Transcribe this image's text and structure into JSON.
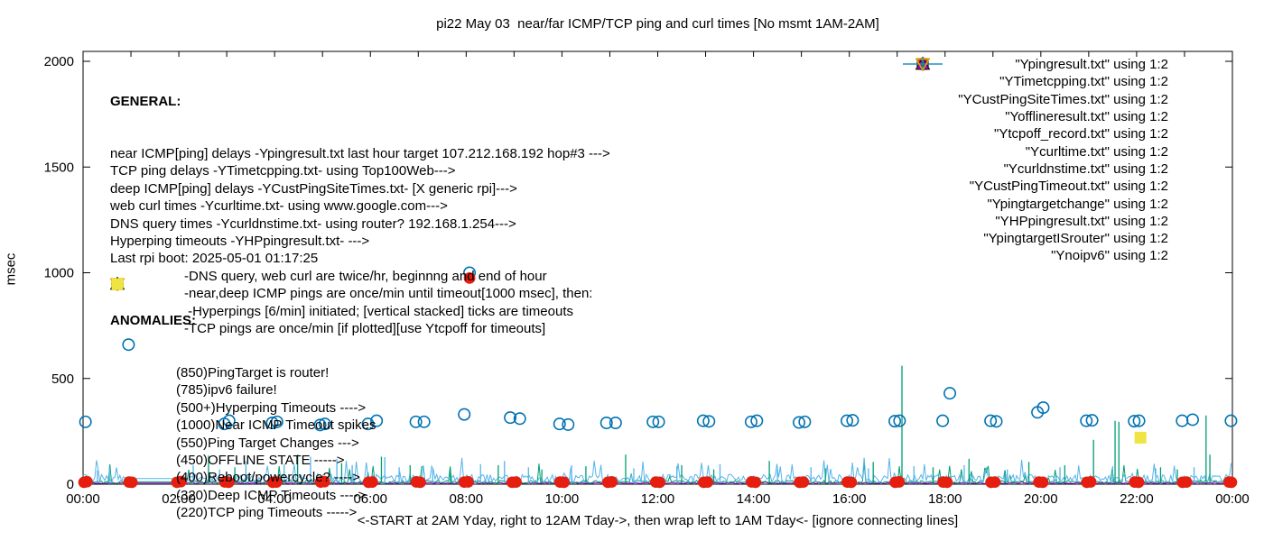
{
  "title": "pi22 May 03  near/far ICMP/TCP ping and curl times [No msmt 1AM-2AM]",
  "axes": {
    "ylabel": "msec",
    "xlabel": "<-START at 2AM Yday, right to 12AM Tday->, then wrap left to 1AM Tday<- [ignore connecting lines]",
    "y_ticks": [
      0,
      500,
      1000,
      1500,
      2000
    ],
    "x_tick_labels": [
      "00:00",
      "02:00",
      "04:00",
      "06:00",
      "08:00",
      "10:00",
      "12:00",
      "14:00",
      "16:00",
      "18:00",
      "20:00",
      "22:00",
      "00:00"
    ],
    "x_tick_hours": [
      0,
      2,
      4,
      6,
      8,
      10,
      12,
      14,
      16,
      18,
      20,
      22,
      24
    ],
    "minor_x_tick_every_hours": 1,
    "y_range": [
      0,
      2000
    ],
    "x_range_hours": [
      0,
      24
    ]
  },
  "legend": [
    {
      "label": "\"Ypingresult.txt\" using 1:2",
      "marker": "line",
      "color": "#9400d3"
    },
    {
      "label": "\"YTimetcpping.txt\" using 1:2",
      "marker": "line",
      "color": "#009e73"
    },
    {
      "label": "\"YCustPingSiteTimes.txt\" using 1:2",
      "marker": "line",
      "color": "#56b4e9"
    },
    {
      "label": "\"Yofflineresult.txt\" using 1:2",
      "marker": "square-open",
      "color": "#e69f00"
    },
    {
      "label": "\"Ytcpoff_record.txt\" using 1:2",
      "marker": "square-filled",
      "color": "#f0e442"
    },
    {
      "label": "\"Ycurltime.txt\" using 1:2",
      "marker": "circle-open",
      "color": "#0072b2"
    },
    {
      "label": "\"Ycurldnstime.txt\" using 1:2",
      "marker": "circle-filled",
      "color": "#e51e10"
    },
    {
      "label": "\"YCustPingTimeout.txt\" using 1:2",
      "marker": "triangle-up-open",
      "color": "#000000"
    },
    {
      "label": "\"Ypingtargetchange\" using 1:2",
      "marker": "triangle-up-filled",
      "color": "#9400d3"
    },
    {
      "label": "\"YHPpingresult.txt\" using 1:2",
      "marker": "plus",
      "color": "#009e73"
    },
    {
      "label": "\"YpingtargetISrouter\" using 1:2",
      "marker": "triangle-down-open",
      "color": "#56b4e9"
    },
    {
      "label": "\"Ynoipv6\" using 1:2",
      "marker": "triangle-down-open",
      "color": "#e69f00"
    }
  ],
  "general": {
    "heading": "GENERAL:",
    "lines": [
      "near ICMP[ping] delays -Ypingresult.txt last hour target 107.212.168.192 hop#3 --->",
      "TCP ping delays -YTimetcpping.txt- using Top100Web--->",
      "deep ICMP[ping] delays -YCustPingSiteTimes.txt- [X generic rpi]--->",
      "web curl times -Ycurltime.txt- using www.google.com--->",
      "DNS query times -Ycurldnstime.txt- using router? 192.168.1.254--->",
      "Hyperping timeouts -YHPpingresult.txt- --->",
      "Last rpi boot: 2025-05-01 01:17:25"
    ],
    "indented_lines": [
      "-DNS query, web curl are twice/hr, beginnng and end of hour",
      "-near,deep ICMP pings are once/min until timeout[1000 msec], then:",
      " -Hyperpings [6/min] initiated; [vertical stacked] ticks are timeouts",
      "-TCP pings are once/min [if plotted][use Ytcpoff for timeouts]"
    ]
  },
  "anomalies": {
    "heading": "ANOMALIES:",
    "items": [
      {
        "marker": "triangle-down-open",
        "color": "#56b4e9",
        "text": "(850)PingTarget is router!"
      },
      {
        "marker": "triangle-down-open",
        "color": "#e69f00",
        "text": "(785)ipv6 failure!"
      },
      {
        "marker": "plus",
        "color": "#009e73",
        "text": "(500+)Hyperping Timeouts ---->"
      },
      {
        "marker": "none",
        "color": "",
        "text": "(1000)Near ICMP Timeout spikes"
      },
      {
        "marker": "triangle-up-filled",
        "color": "#9400d3",
        "text": "(550)Ping Target Changes --->"
      },
      {
        "marker": "square-open",
        "color": "#e69f00",
        "text": "(450)OFFLINE STATE ----->"
      },
      {
        "marker": "none",
        "color": "",
        "text": "(400)Reboot/powercycle? ---->"
      },
      {
        "marker": "triangle-up-open",
        "color": "#000000",
        "text": "(320)Deep ICMP Timeouts ---->"
      },
      {
        "marker": "square-filled",
        "color": "#f0e442",
        "text": "(220)TCP ping Timeouts ----->"
      }
    ]
  },
  "chart_data": {
    "type": "line",
    "title": "pi22 May 03  near/far ICMP/TCP ping and curl times [No msmt 1AM-2AM]",
    "xlabel": "<-START at 2AM Yday, right to 12AM Tday->, then wrap left to 1AM Tday<- [ignore connecting lines]",
    "ylabel": "msec",
    "xlim_hours": [
      0,
      24
    ],
    "ylim": [
      0,
      2000
    ],
    "grid": false,
    "legend_position": "top-right-inside",
    "no_measurement_window_hours": [
      1,
      2
    ],
    "series": [
      {
        "name": "Ypingresult.txt",
        "role": "near ICMP ping delay",
        "type": "noise-line",
        "color": "#9400d3",
        "baseline_msec": [
          3,
          8
        ],
        "spikes": []
      },
      {
        "name": "YTimetcpping.txt",
        "role": "TCP ping delay",
        "type": "noise-line",
        "color": "#009e73",
        "baseline_msec": [
          4,
          18
        ],
        "spikes": [
          [
            2.62,
            135
          ],
          [
            3.17,
            80
          ],
          [
            4.48,
            140
          ],
          [
            5.4,
            100
          ],
          [
            6.23,
            130
          ],
          [
            6.83,
            90
          ],
          [
            7.67,
            75
          ],
          [
            8.67,
            90
          ],
          [
            9.58,
            70
          ],
          [
            10.5,
            85
          ],
          [
            11.33,
            140
          ],
          [
            12.5,
            90
          ],
          [
            13.17,
            70
          ],
          [
            14.33,
            110
          ],
          [
            15.5,
            75
          ],
          [
            16.5,
            105
          ],
          [
            17.1,
            560
          ],
          [
            17.75,
            80
          ],
          [
            18.5,
            120
          ],
          [
            19.25,
            65
          ],
          [
            19.75,
            105
          ],
          [
            20.5,
            90
          ],
          [
            21.1,
            210
          ],
          [
            21.55,
            300
          ],
          [
            21.63,
            295
          ],
          [
            22.5,
            80
          ],
          [
            22.85,
            70
          ],
          [
            23.45,
            325
          ],
          [
            23.53,
            140
          ]
        ]
      },
      {
        "name": "YCustPingSiteTimes.txt",
        "role": "deep ICMP ping delay",
        "type": "noise-line",
        "color": "#56b4e9",
        "baseline_msec": [
          8,
          46
        ],
        "spikes": [
          [
            0.3,
            65
          ],
          [
            0.55,
            80
          ],
          [
            2.3,
            90
          ],
          [
            2.85,
            70
          ],
          [
            3.4,
            110
          ],
          [
            4.2,
            95
          ],
          [
            4.75,
            130
          ],
          [
            5.3,
            120
          ],
          [
            5.62,
            90
          ],
          [
            6.3,
            128
          ],
          [
            6.6,
            80
          ],
          [
            7.3,
            70
          ],
          [
            8.3,
            95
          ],
          [
            8.8,
            110
          ],
          [
            9.3,
            80
          ],
          [
            10.2,
            90
          ],
          [
            11.5,
            75
          ],
          [
            12.4,
            85
          ],
          [
            13.3,
            95
          ],
          [
            14.5,
            70
          ],
          [
            15.2,
            80
          ],
          [
            16.4,
            75
          ],
          [
            17.35,
            85
          ],
          [
            18.4,
            90
          ],
          [
            19.3,
            70
          ],
          [
            20.4,
            80
          ],
          [
            21.5,
            85
          ],
          [
            22.4,
            75
          ],
          [
            23.2,
            80
          ]
        ]
      },
      {
        "name": "Yofflineresult.txt",
        "role": "offline state marker",
        "type": "scatter",
        "marker": "square-open",
        "color": "#e69f00",
        "points": []
      },
      {
        "name": "Ytcpoff_record.txt",
        "role": "TCP ping timeout marker",
        "type": "scatter",
        "marker": "square-filled",
        "color": "#f0e442",
        "points": [
          [
            22.08,
            220
          ]
        ]
      },
      {
        "name": "Ycurltime.txt",
        "role": "web curl time",
        "type": "scatter",
        "marker": "circle-open",
        "color": "#0072b2",
        "points": [
          [
            0.05,
            295
          ],
          [
            0.95,
            660
          ],
          [
            2.95,
            285
          ],
          [
            3.05,
            300
          ],
          [
            3.95,
            290
          ],
          [
            4.05,
            295
          ],
          [
            4.95,
            280
          ],
          [
            5.05,
            285
          ],
          [
            5.95,
            285
          ],
          [
            6.13,
            300
          ],
          [
            6.95,
            295
          ],
          [
            7.12,
            295
          ],
          [
            7.96,
            330
          ],
          [
            8.07,
            1000
          ],
          [
            8.92,
            315
          ],
          [
            9.12,
            310
          ],
          [
            9.95,
            285
          ],
          [
            10.13,
            282
          ],
          [
            10.93,
            290
          ],
          [
            11.12,
            290
          ],
          [
            11.9,
            295
          ],
          [
            12.02,
            295
          ],
          [
            12.95,
            300
          ],
          [
            13.07,
            297
          ],
          [
            13.95,
            295
          ],
          [
            14.07,
            300
          ],
          [
            14.95,
            292
          ],
          [
            15.07,
            295
          ],
          [
            15.95,
            300
          ],
          [
            16.07,
            302
          ],
          [
            16.95,
            298
          ],
          [
            17.05,
            300
          ],
          [
            17.95,
            300
          ],
          [
            18.1,
            430
          ],
          [
            18.95,
            300
          ],
          [
            19.07,
            297
          ],
          [
            19.93,
            340
          ],
          [
            20.05,
            362
          ],
          [
            20.95,
            300
          ],
          [
            21.07,
            302
          ],
          [
            21.95,
            298
          ],
          [
            22.05,
            300
          ],
          [
            22.95,
            300
          ],
          [
            23.17,
            305
          ],
          [
            23.97,
            300
          ]
        ]
      },
      {
        "name": "Ycurldnstime.txt",
        "role": "DNS query time",
        "type": "scatter",
        "marker": "circle-filled",
        "color": "#e51e10",
        "points": [
          [
            0.02,
            9
          ],
          [
            0.08,
            12
          ],
          [
            0.96,
            10
          ],
          [
            1.02,
            9
          ],
          [
            1.96,
            9
          ],
          [
            2.04,
            12
          ],
          [
            2.96,
            11
          ],
          [
            3.04,
            9
          ],
          [
            3.96,
            9
          ],
          [
            4.04,
            10
          ],
          [
            4.96,
            10
          ],
          [
            5.04,
            12
          ],
          [
            5.96,
            9
          ],
          [
            6.04,
            10
          ],
          [
            6.96,
            11
          ],
          [
            7.04,
            9
          ],
          [
            7.96,
            10
          ],
          [
            8.04,
            11
          ],
          [
            8.07,
            975
          ],
          [
            8.96,
            9
          ],
          [
            9.04,
            10
          ],
          [
            9.96,
            10
          ],
          [
            10.04,
            9
          ],
          [
            10.96,
            9
          ],
          [
            11.04,
            11
          ],
          [
            11.96,
            10
          ],
          [
            12.04,
            9
          ],
          [
            12.96,
            9
          ],
          [
            13.04,
            10
          ],
          [
            13.96,
            11
          ],
          [
            14.04,
            9
          ],
          [
            14.96,
            9
          ],
          [
            15.04,
            10
          ],
          [
            15.96,
            10
          ],
          [
            16.04,
            9
          ],
          [
            16.96,
            9
          ],
          [
            17.04,
            11
          ],
          [
            17.96,
            10
          ],
          [
            18.04,
            9
          ],
          [
            18.96,
            9
          ],
          [
            19.04,
            10
          ],
          [
            19.96,
            10
          ],
          [
            20.04,
            9
          ],
          [
            20.96,
            9
          ],
          [
            21.04,
            11
          ],
          [
            21.96,
            10
          ],
          [
            22.04,
            9
          ],
          [
            22.96,
            9
          ],
          [
            23.04,
            10
          ],
          [
            23.93,
            10
          ],
          [
            23.98,
            9
          ]
        ]
      },
      {
        "name": "YCustPingTimeout.txt",
        "role": "deep ICMP timeout marker",
        "type": "scatter",
        "marker": "triangle-up-open",
        "color": "#000000",
        "points": []
      },
      {
        "name": "Ypingtargetchange",
        "role": "ping target change marker",
        "type": "scatter",
        "marker": "triangle-up-filled",
        "color": "#9400d3",
        "points": []
      },
      {
        "name": "YHPpingresult.txt",
        "role": "hyperping timeout marker",
        "type": "scatter",
        "marker": "plus",
        "color": "#009e73",
        "points": []
      },
      {
        "name": "YpingtargetISrouter",
        "role": "ping target is router marker",
        "type": "scatter",
        "marker": "triangle-down-open",
        "color": "#56b4e9",
        "points": []
      },
      {
        "name": "Ynoipv6",
        "role": "ipv6 failure marker",
        "type": "scatter",
        "marker": "triangle-down-open",
        "color": "#e69f00",
        "points": []
      }
    ]
  }
}
